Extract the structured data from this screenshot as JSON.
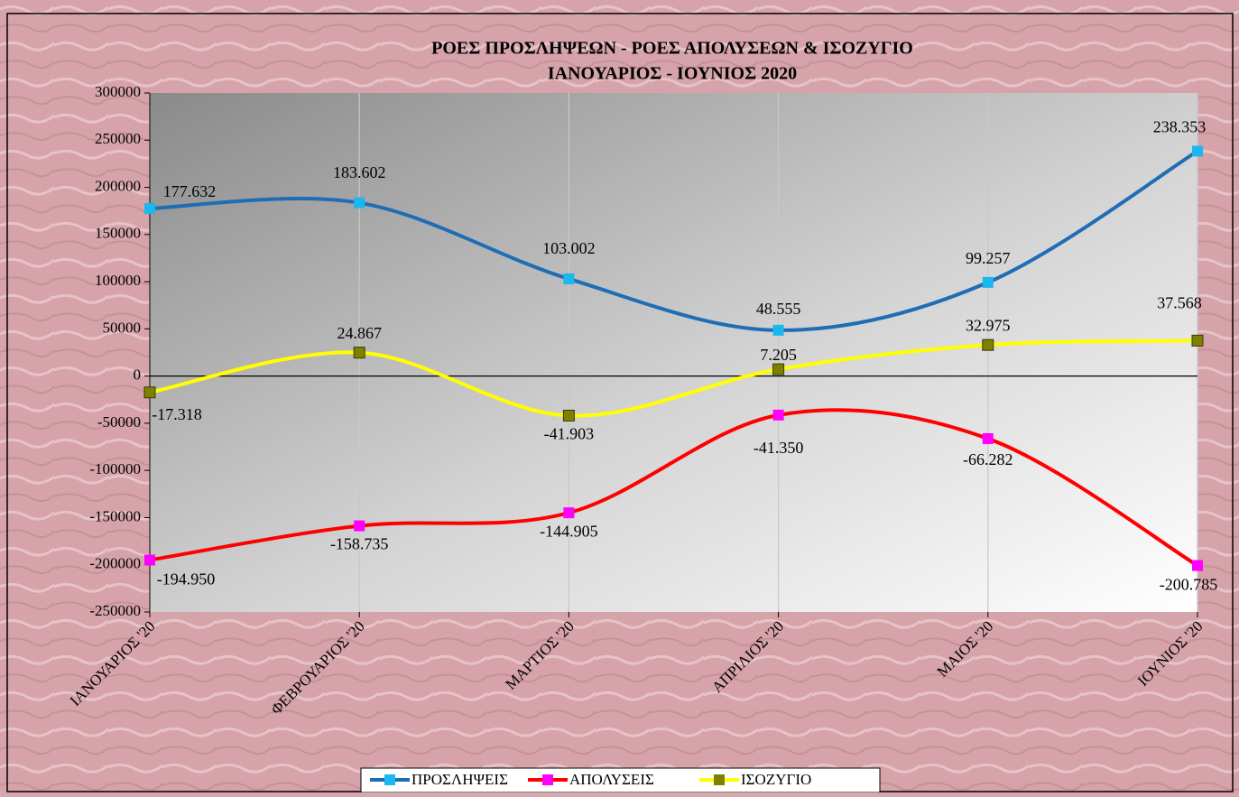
{
  "chart_data": {
    "type": "line",
    "title": "ΡΟΕΣ ΠΡΟΣΛΗΨΕΩΝ -  ΡΟΕΣ ΑΠΟΛΥΣΕΩΝ  & ΙΣΟΖΥΓΙΟ",
    "subtitle": "ΙΑΝΟΥΑΡΙΟΣ  -  ΙΟΥΝΙΟΣ  2020",
    "categories": [
      "ΙΑΝΟΥΑΡΙΟΣ '20",
      "ΦΕΒΡΟΥΑΡΙΟΣ '20",
      "ΜΑΡΤΙΟΣ '20",
      "ΑΠΡΙΛΙΟΣ '20",
      "ΜΑΙΟΣ '20",
      "ΙΟΥΝΙΟΣ '20"
    ],
    "series": [
      {
        "name": "ΠΡΟΣΛΗΨΕΙΣ",
        "color": "#1f6db5",
        "marker_color": "#1ab8ee",
        "values": [
          177632,
          183602,
          103002,
          48555,
          99257,
          238353
        ],
        "value_labels": [
          "177.632",
          "183.602",
          "103.002",
          "48.555",
          "99.257",
          "238.353"
        ]
      },
      {
        "name": "ΑΠΟΛΥΣΕΙΣ",
        "color": "#ff0000",
        "marker_color": "#ff00ff",
        "values": [
          -194950,
          -158735,
          -144905,
          -41350,
          -66282,
          -200785
        ],
        "value_labels": [
          "-194.950",
          "-158.735",
          "-144.905",
          "-41.350",
          "-66.282",
          "-200.785"
        ]
      },
      {
        "name": "ΙΣΟΖΥΓΙΟ",
        "color": "#ffff00",
        "marker_color": "#808000",
        "values": [
          -17318,
          24867,
          -41903,
          7205,
          32975,
          37568
        ],
        "value_labels": [
          "-17.318",
          "24.867",
          "-41.903",
          "7.205",
          "32.975",
          "37.568"
        ]
      }
    ],
    "ylim": [
      -250000,
      300000
    ],
    "yticks": [
      -250000,
      -200000,
      -150000,
      -100000,
      -50000,
      0,
      50000,
      100000,
      150000,
      200000,
      250000,
      300000
    ],
    "grid": true,
    "legend": "bottom"
  }
}
